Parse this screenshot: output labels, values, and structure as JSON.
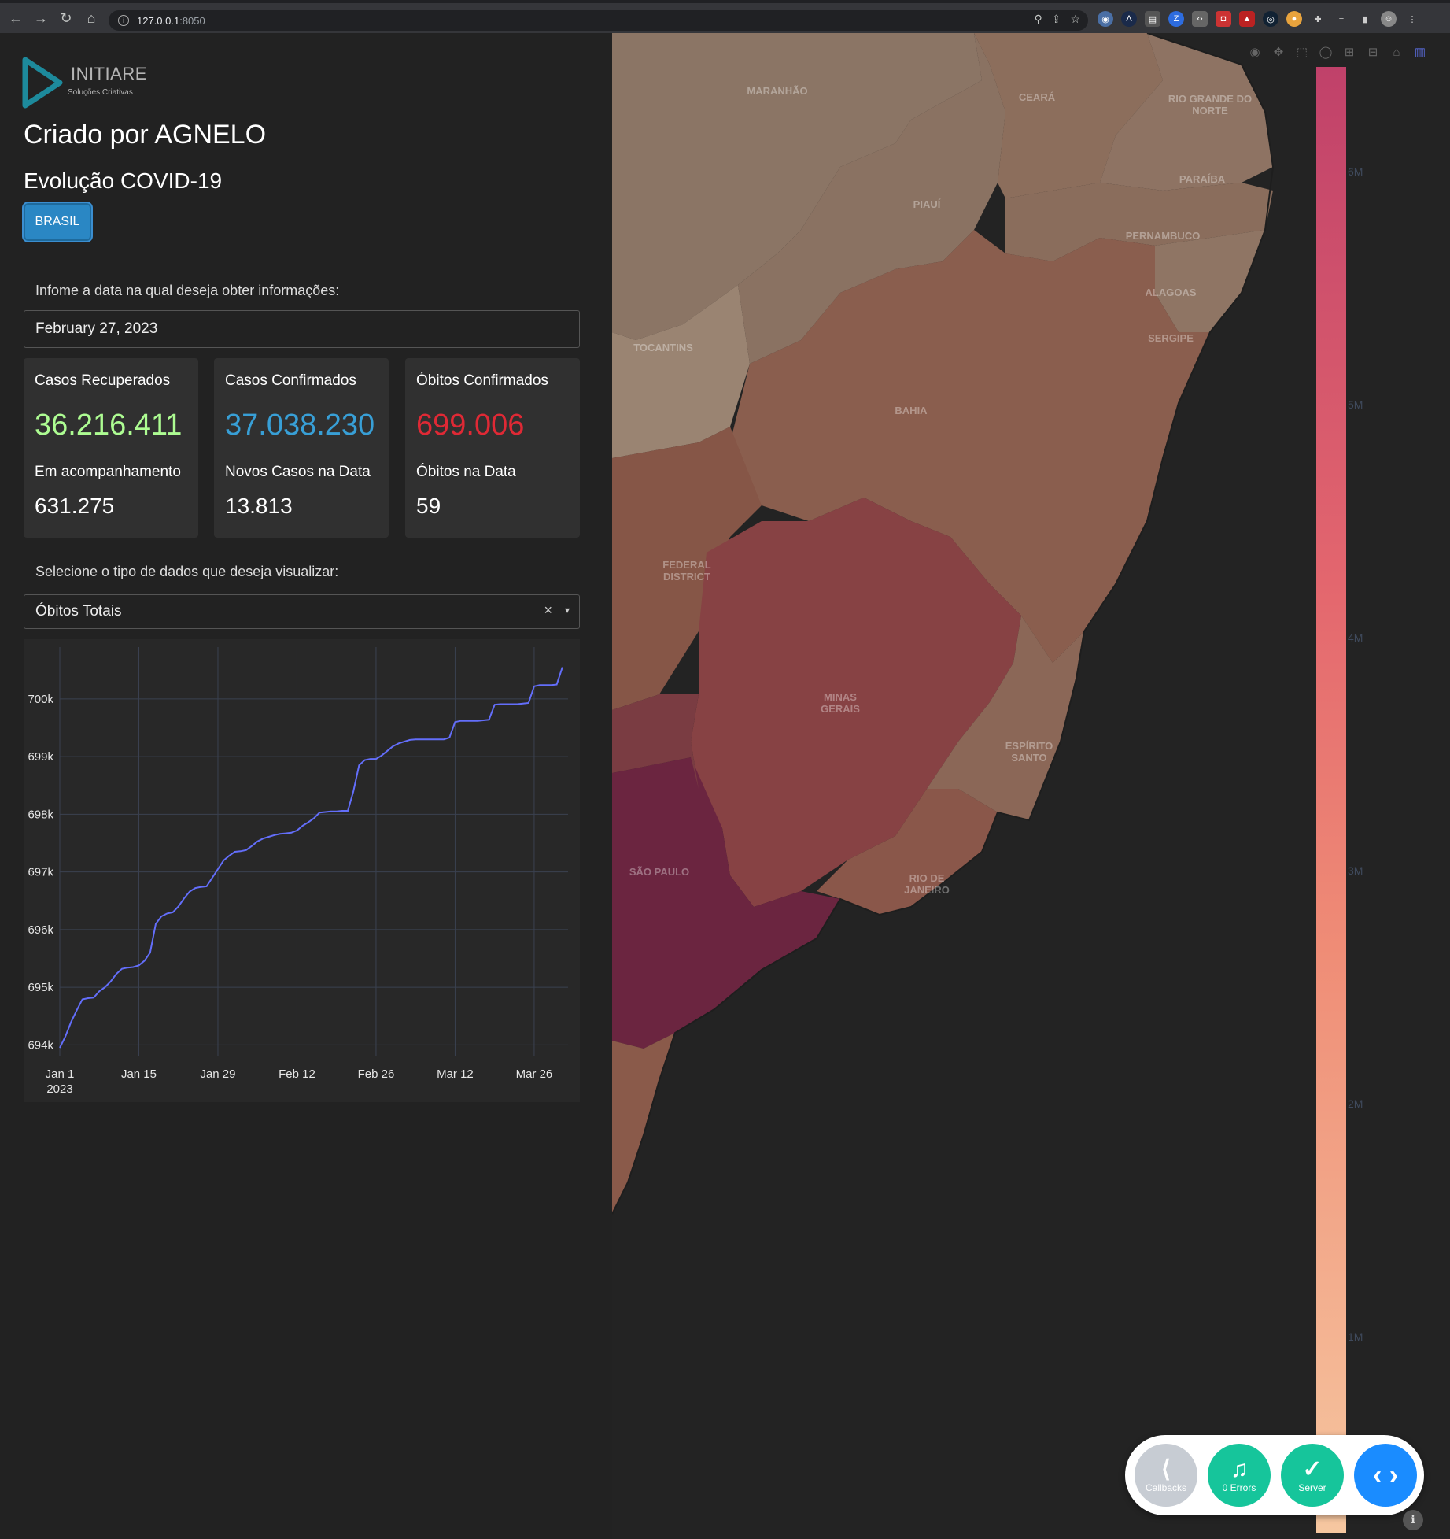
{
  "browser": {
    "url_host": "127.0.0.1",
    "url_port": ":8050"
  },
  "logo": {
    "brand": "INITIARE",
    "tagline": "Soluções Criativas"
  },
  "header": {
    "creator": "Criado por AGNELO",
    "subtitle": "Evolução COVID-19",
    "brasil_button": "BRASIL"
  },
  "date_picker": {
    "label": "Infome a data na qual deseja obter informações:",
    "value": "February 27, 2023"
  },
  "cards": [
    {
      "title": "Casos Recuperados",
      "value": "36.216.411",
      "value_color": "#adfc92",
      "sub_title": "Em acompanhamento",
      "sub_value": "631.275"
    },
    {
      "title": "Casos Confirmados",
      "value": "37.038.230",
      "value_color": "#389fd6",
      "sub_title": "Novos Casos na Data",
      "sub_value": "13.813"
    },
    {
      "title": "Óbitos Confirmados",
      "value": "699.006",
      "value_color": "#df2935",
      "sub_title": "Óbitos na Data",
      "sub_value": "59"
    }
  ],
  "data_select": {
    "label": "Selecione o tipo de dados que deseja visualizar:",
    "value": "Óbitos Totais",
    "clear_icon": "×",
    "caret_icon": "▾"
  },
  "chart_data": {
    "type": "line",
    "y_ticks": [
      "694k",
      "695k",
      "696k",
      "697k",
      "698k",
      "699k",
      "700k"
    ],
    "y_tick_values": [
      694000,
      695000,
      696000,
      697000,
      698000,
      699000,
      700000
    ],
    "x_ticks": [
      {
        "label": "Jan 1",
        "sub": "2023",
        "day": 0
      },
      {
        "label": "Jan 15",
        "sub": "",
        "day": 14
      },
      {
        "label": "Jan 29",
        "sub": "",
        "day": 28
      },
      {
        "label": "Feb 12",
        "sub": "",
        "day": 42
      },
      {
        "label": "Feb 26",
        "sub": "",
        "day": 56
      },
      {
        "label": "Mar 12",
        "sub": "",
        "day": 70
      },
      {
        "label": "Mar 26",
        "sub": "",
        "day": 84
      }
    ],
    "ylim": [
      693800,
      700900
    ],
    "xlim": [
      0,
      90
    ],
    "line_color": "#636efa",
    "series": [
      {
        "x": [
          0,
          1,
          2,
          3,
          4,
          5,
          6,
          7,
          8,
          9,
          10,
          11,
          12,
          13,
          14,
          15,
          16,
          17,
          18,
          19,
          20,
          21,
          22,
          23,
          24,
          25,
          26,
          27,
          28,
          29,
          30,
          31,
          32,
          33,
          34,
          35,
          36,
          37,
          38,
          39,
          40,
          41,
          42,
          43,
          44,
          45,
          46,
          47,
          48,
          49,
          50,
          51,
          52,
          53,
          54,
          55,
          56,
          57,
          58,
          59,
          60,
          61,
          62,
          63,
          64,
          65,
          66,
          67,
          68,
          69,
          70,
          71,
          72,
          73,
          74,
          75,
          76,
          77,
          78,
          79,
          80,
          81,
          82,
          83,
          84,
          85,
          86,
          87,
          88,
          89
        ],
        "y": [
          693950,
          694150,
          694400,
          694600,
          694790,
          694810,
          694820,
          694930,
          695000,
          695100,
          695230,
          695320,
          695340,
          695350,
          695380,
          695460,
          695600,
          696100,
          696230,
          696280,
          696300,
          696400,
          696540,
          696660,
          696720,
          696740,
          696750,
          696900,
          697050,
          697200,
          697280,
          697350,
          697360,
          697380,
          697450,
          697530,
          697580,
          697610,
          697640,
          697660,
          697670,
          697680,
          697720,
          697800,
          697860,
          697930,
          698030,
          698040,
          698050,
          698050,
          698060,
          698060,
          698400,
          698850,
          698940,
          698960,
          698960,
          699020,
          699100,
          699180,
          699230,
          699260,
          699290,
          699300,
          699300,
          699300,
          699300,
          699300,
          699300,
          699330,
          699600,
          699620,
          699620,
          699620,
          699620,
          699630,
          699640,
          699900,
          699910,
          699910,
          699910,
          699910,
          699920,
          699930,
          700220,
          700240,
          700240,
          700240,
          700250,
          700550
        ]
      }
    ]
  },
  "map": {
    "state_labels": [
      "MARANHÃO",
      "CEARÁ",
      "RIO GRANDE DO NORTE",
      "PARAÍBA",
      "PIAUÍ",
      "PERNAMBUCO",
      "ALAGOAS",
      "SERGIPE",
      "TOCANTINS",
      "BAHIA",
      "FEDERAL DISTRICT",
      "MINAS GERAIS",
      "ESPÍRITO SANTO",
      "SÃO PAULO",
      "RIO DE JANEIRO"
    ],
    "colorbar_ticks": [
      "6M",
      "5M",
      "4M",
      "3M",
      "2M",
      "1M"
    ],
    "colorbar_top_color": "#c0416a",
    "colorbar_bottom_color": "#f6c7a0"
  },
  "modebar_icons": [
    "camera-icon",
    "pan-icon",
    "box-select-icon",
    "lasso-icon",
    "zoom-in-icon",
    "zoom-out-icon",
    "home-icon",
    "plotly-logo-icon"
  ],
  "dev_tools": {
    "callbacks": "Callbacks",
    "errors": "0 Errors",
    "server": "Server"
  }
}
